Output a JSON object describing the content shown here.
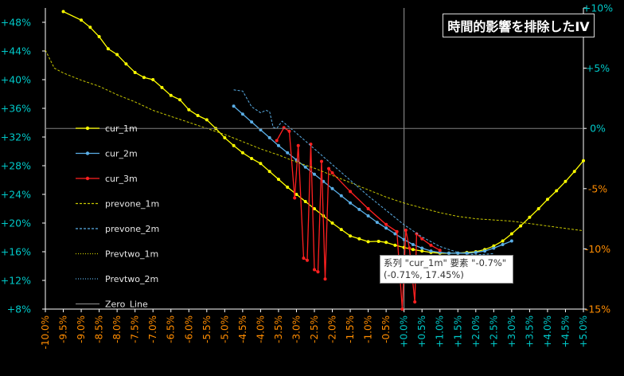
{
  "title": "時間的影響を排除したIV",
  "tooltip": {
    "line1": "系列 \"cur_1m\" 要素 \"-0.7%\"",
    "line2": "(-0.71%, 17.45%)"
  },
  "chart_data": {
    "type": "line",
    "title": "時間的影響を排除したIV",
    "x_ticks": [
      "-10.0%",
      "-9.5%",
      "-9.0%",
      "-8.5%",
      "-8.0%",
      "-7.5%",
      "-7.0%",
      "-6.5%",
      "-6.0%",
      "-5.5%",
      "-5.0%",
      "-4.5%",
      "-4.0%",
      "-3.5%",
      "-3.0%",
      "-2.5%",
      "-2.0%",
      "-1.5%",
      "-1.0%",
      "-0.5%",
      "+0.0%",
      "+0.5%",
      "+1.0%",
      "+1.5%",
      "+2.0%",
      "+2.5%",
      "+3.0%",
      "+3.5%",
      "+4.0%",
      "+4.5%",
      "+5.0%"
    ],
    "xlim": [
      -10,
      5
    ],
    "y_left_ticks": [
      "+8%",
      "+12%",
      "+16%",
      "+20%",
      "+24%",
      "+28%",
      "+32%",
      "+36%",
      "+40%",
      "+44%",
      "+48%"
    ],
    "ylim_left": [
      8,
      50
    ],
    "y_right_ticks": [
      "+10%",
      "+5%",
      "0%",
      "-5%",
      "-10%",
      "-15%"
    ],
    "ylim_right": [
      -15,
      10
    ],
    "grid": false,
    "legend_position": "left",
    "colors": {
      "background": "#000000",
      "tick_left": "#00c8c8",
      "tick_negative_x": "#ff8c00",
      "tick_positive_x": "#00c8c8",
      "right_positive": "#00c8c8",
      "right_negative": "#ff8c00"
    },
    "series": [
      {
        "name": "cur_1m",
        "color": "#ffff00",
        "style": "solid-marker",
        "axis": "left",
        "points": [
          [
            -9.5,
            49.5
          ],
          [
            -9.0,
            48.3
          ],
          [
            -8.75,
            47.3
          ],
          [
            -8.5,
            46.0
          ],
          [
            -8.25,
            44.3
          ],
          [
            -8.0,
            43.5
          ],
          [
            -7.75,
            42.2
          ],
          [
            -7.5,
            41.0
          ],
          [
            -7.25,
            40.3
          ],
          [
            -7.0,
            40.0
          ],
          [
            -6.75,
            38.9
          ],
          [
            -6.5,
            37.8
          ],
          [
            -6.25,
            37.2
          ],
          [
            -6.0,
            35.8
          ],
          [
            -5.75,
            35.0
          ],
          [
            -5.5,
            34.4
          ],
          [
            -5.25,
            33.2
          ],
          [
            -5.0,
            31.9
          ],
          [
            -4.75,
            30.8
          ],
          [
            -4.5,
            29.8
          ],
          [
            -4.25,
            29.0
          ],
          [
            -4.0,
            28.3
          ],
          [
            -3.75,
            27.2
          ],
          [
            -3.5,
            26.1
          ],
          [
            -3.25,
            25.0
          ],
          [
            -3.0,
            24.0
          ],
          [
            -2.75,
            23.0
          ],
          [
            -2.5,
            22.0
          ],
          [
            -2.25,
            21.0
          ],
          [
            -2.0,
            20.0
          ],
          [
            -1.75,
            19.1
          ],
          [
            -1.5,
            18.2
          ],
          [
            -1.25,
            17.8
          ],
          [
            -1.0,
            17.4
          ],
          [
            -0.71,
            17.45
          ],
          [
            -0.5,
            17.3
          ],
          [
            -0.25,
            16.9
          ],
          [
            0.0,
            16.6
          ],
          [
            0.25,
            16.3
          ],
          [
            0.5,
            16.1
          ],
          [
            0.75,
            15.9
          ],
          [
            1.0,
            15.8
          ],
          [
            1.25,
            15.8
          ],
          [
            1.5,
            15.8
          ],
          [
            1.75,
            15.9
          ],
          [
            2.0,
            16.0
          ],
          [
            2.25,
            16.3
          ],
          [
            2.5,
            16.8
          ],
          [
            2.75,
            17.5
          ],
          [
            3.0,
            18.5
          ],
          [
            3.25,
            19.6
          ],
          [
            3.5,
            20.8
          ],
          [
            3.75,
            22.0
          ],
          [
            4.0,
            23.3
          ],
          [
            4.25,
            24.5
          ],
          [
            4.5,
            25.8
          ],
          [
            4.75,
            27.2
          ],
          [
            5.0,
            28.7
          ]
        ]
      },
      {
        "name": "cur_2m",
        "color": "#5aaee6",
        "style": "solid-marker",
        "axis": "left",
        "points": [
          [
            -4.75,
            36.3
          ],
          [
            -4.5,
            35.2
          ],
          [
            -4.25,
            34.1
          ],
          [
            -4.0,
            33.0
          ],
          [
            -3.75,
            31.9
          ],
          [
            -3.5,
            30.8
          ],
          [
            -3.25,
            29.8
          ],
          [
            -3.0,
            28.8
          ],
          [
            -2.75,
            27.8
          ],
          [
            -2.5,
            26.8
          ],
          [
            -2.25,
            25.8
          ],
          [
            -2.0,
            24.8
          ],
          [
            -1.75,
            23.8
          ],
          [
            -1.5,
            22.8
          ],
          [
            -1.25,
            21.9
          ],
          [
            -1.0,
            21.0
          ],
          [
            -0.75,
            20.1
          ],
          [
            -0.5,
            19.3
          ],
          [
            -0.25,
            18.5
          ],
          [
            0.0,
            17.7
          ],
          [
            0.25,
            17.0
          ],
          [
            0.5,
            16.5
          ],
          [
            0.75,
            16.1
          ],
          [
            1.0,
            15.9
          ],
          [
            1.25,
            15.8
          ],
          [
            1.5,
            15.8
          ],
          [
            1.75,
            15.8
          ],
          [
            2.0,
            15.9
          ],
          [
            2.25,
            16.1
          ],
          [
            2.5,
            16.5
          ],
          [
            2.75,
            17.0
          ],
          [
            3.0,
            17.5
          ]
        ]
      },
      {
        "name": "cur_3m",
        "color": "#ff2020",
        "style": "solid-marker",
        "axis": "left",
        "points": [
          [
            -3.55,
            31.5
          ],
          [
            -3.35,
            33.3
          ],
          [
            -3.2,
            32.8
          ],
          [
            -3.05,
            23.5
          ],
          [
            -2.95,
            30.8
          ],
          [
            -2.8,
            15.1
          ],
          [
            -2.7,
            14.8
          ],
          [
            -2.6,
            31.0
          ],
          [
            -2.5,
            13.5
          ],
          [
            -2.4,
            13.2
          ],
          [
            -2.3,
            28.6
          ],
          [
            -2.2,
            12.2
          ],
          [
            -2.1,
            27.6
          ],
          [
            -2.0,
            27.0
          ],
          [
            -1.5,
            24.4
          ],
          [
            -1.0,
            22.0
          ],
          [
            -0.5,
            19.8
          ],
          [
            -0.2,
            18.8
          ],
          [
            -0.05,
            8.0
          ],
          [
            0.05,
            19.0
          ],
          [
            0.15,
            16.5
          ],
          [
            0.3,
            9.0
          ],
          [
            0.35,
            18.5
          ],
          [
            0.5,
            17.8
          ],
          [
            0.75,
            16.9
          ],
          [
            1.0,
            16.2
          ]
        ]
      },
      {
        "name": "prevone_1m",
        "color": "#c8c800",
        "style": "dashed",
        "axis": "right",
        "points": [
          [
            -10.0,
            6.5
          ],
          [
            -9.75,
            5.0
          ],
          [
            -9.5,
            4.6
          ],
          [
            -9.0,
            4.0
          ],
          [
            -8.5,
            3.5
          ],
          [
            -8.0,
            2.8
          ],
          [
            -7.5,
            2.2
          ],
          [
            -7.0,
            1.5
          ],
          [
            -6.5,
            1.0
          ],
          [
            -6.0,
            0.5
          ],
          [
            -5.5,
            0.0
          ],
          [
            -5.0,
            -0.5
          ],
          [
            -4.5,
            -1.1
          ],
          [
            -4.0,
            -1.7
          ],
          [
            -3.5,
            -2.2
          ],
          [
            -3.0,
            -2.8
          ],
          [
            -2.5,
            -3.3
          ],
          [
            -2.0,
            -3.9
          ],
          [
            -1.5,
            -4.5
          ],
          [
            -1.0,
            -5.1
          ],
          [
            -0.5,
            -5.7
          ],
          [
            0.0,
            -6.2
          ],
          [
            0.5,
            -6.6
          ],
          [
            1.0,
            -7.0
          ],
          [
            1.5,
            -7.3
          ],
          [
            2.0,
            -7.5
          ],
          [
            2.5,
            -7.6
          ],
          [
            3.0,
            -7.7
          ],
          [
            3.5,
            -7.9
          ],
          [
            4.0,
            -8.1
          ],
          [
            4.5,
            -8.3
          ],
          [
            5.0,
            -8.5
          ]
        ]
      },
      {
        "name": "prevone_2m",
        "color": "#5aaee6",
        "style": "dashed",
        "axis": "right",
        "points": [
          [
            -4.75,
            3.2
          ],
          [
            -4.5,
            3.1
          ],
          [
            -4.25,
            1.8
          ],
          [
            -4.0,
            1.3
          ],
          [
            -3.85,
            1.5
          ],
          [
            -3.75,
            1.4
          ],
          [
            -3.65,
            0.1
          ],
          [
            -3.55,
            0.0
          ],
          [
            -3.4,
            0.6
          ],
          [
            -3.0,
            -0.4
          ],
          [
            -2.5,
            -1.7
          ],
          [
            -2.0,
            -3.0
          ],
          [
            -1.5,
            -4.3
          ],
          [
            -1.0,
            -5.6
          ],
          [
            -0.5,
            -6.8
          ],
          [
            0.0,
            -8.0
          ],
          [
            0.5,
            -9.0
          ],
          [
            1.0,
            -9.8
          ],
          [
            1.5,
            -10.3
          ],
          [
            2.0,
            -10.5
          ],
          [
            2.5,
            -10.4
          ]
        ]
      },
      {
        "name": "Prevtwo_1m",
        "color": "#c8c800",
        "style": "dotted",
        "axis": "right",
        "points": []
      },
      {
        "name": "Prevtwo_2m",
        "color": "#5aaee6",
        "style": "dotted",
        "axis": "right",
        "points": []
      },
      {
        "name": "Zero_Line",
        "color": "#808080",
        "style": "solid",
        "axis": "right",
        "points": [
          [
            -10.0,
            0
          ],
          [
            5.0,
            0
          ]
        ]
      }
    ]
  }
}
